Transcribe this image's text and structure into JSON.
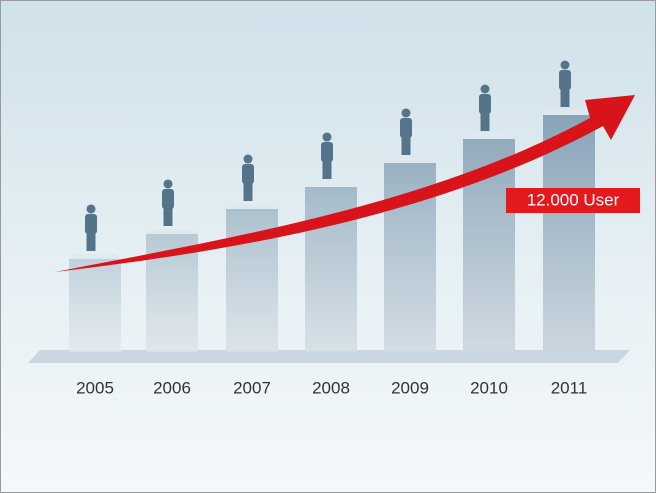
{
  "chart_data": {
    "type": "bar",
    "categories": [
      "2005",
      "2006",
      "2007",
      "2008",
      "2009",
      "2010",
      "2011"
    ],
    "values": [
      4711,
      5975,
      7240,
      8354,
      9570,
      10785,
      12000
    ],
    "color": "#7f9bb0",
    "annotation": "12.000 User",
    "annotation_color": "#e3191e",
    "arrow_color": "#d8141a"
  }
}
